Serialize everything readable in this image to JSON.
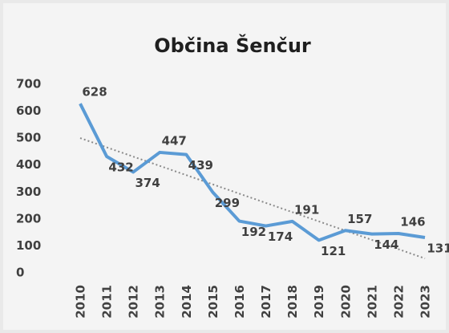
{
  "chart_data": {
    "type": "line",
    "title": "Občina Šenčur",
    "categories": [
      "2010",
      "2011",
      "2012",
      "2013",
      "2014",
      "2015",
      "2016",
      "2017",
      "2018",
      "2019",
      "2020",
      "2021",
      "2022",
      "2023"
    ],
    "values": [
      628,
      432,
      374,
      447,
      439,
      299,
      192,
      174,
      191,
      121,
      157,
      144,
      146,
      131
    ],
    "color": "#5b9bd5",
    "ylim": [
      0,
      700
    ],
    "yticks": [
      0,
      100,
      200,
      300,
      400,
      500,
      600,
      700
    ],
    "grid": false,
    "trendline": true
  }
}
